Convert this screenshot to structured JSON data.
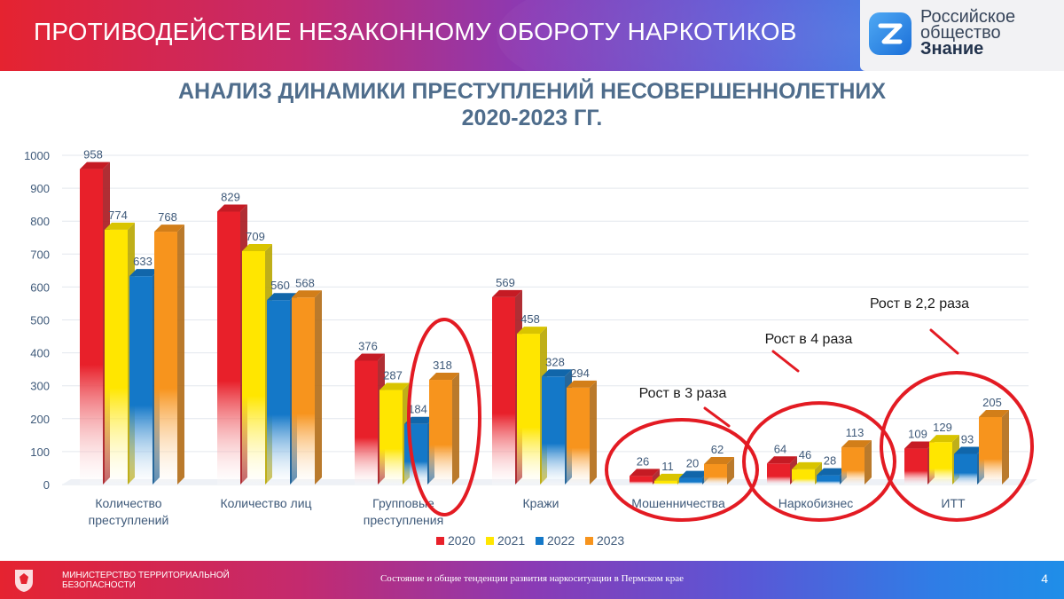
{
  "header": {
    "title": "ПРОТИВОДЕЙСТВИЕ НЕЗАКОННОМУ ОБОРОТУ НАРКОТИКОВ",
    "logo_line1": "Российское",
    "logo_line2": "общество",
    "logo_line3": "Знание"
  },
  "chart_title_line1": "АНАЛИЗ ДИНАМИКИ ПРЕСТУПЛЕНИЙ  НЕСОВЕРШЕННОЛЕТНИХ",
  "chart_title_line2": "2020-2023 ГГ.",
  "chart_data": {
    "type": "bar",
    "title": "АНАЛИЗ ДИНАМИКИ ПРЕСТУПЛЕНИЙ  НЕСОВЕРШЕННОЛЕТНИХ 2020-2023 ГГ.",
    "categories": [
      "Количество преступлений",
      "Количество лиц",
      "Групповые преступления",
      "Кражи",
      "Мошенничества",
      "Наркобизнес",
      "ИТТ"
    ],
    "category_lines": [
      [
        "Количество",
        "преступлений"
      ],
      [
        "Количество лиц"
      ],
      [
        "Групповые",
        "преступления"
      ],
      [
        "Кражи"
      ],
      [
        "Мошенничества"
      ],
      [
        "Наркобизнес"
      ],
      [
        "ИТТ"
      ]
    ],
    "series": [
      {
        "name": "2020",
        "values": [
          958,
          829,
          376,
          569,
          26,
          64,
          109
        ],
        "color": "#e8202a"
      },
      {
        "name": "2021",
        "values": [
          774,
          709,
          287,
          458,
          11,
          46,
          129
        ],
        "color": "#ffe600"
      },
      {
        "name": "2022",
        "values": [
          633,
          560,
          184,
          328,
          20,
          28,
          93
        ],
        "color": "#1478c8"
      },
      {
        "name": "2023",
        "values": [
          768,
          568,
          318,
          294,
          62,
          113,
          205
        ],
        "color": "#f7941d"
      }
    ],
    "ylim": [
      0,
      1000
    ],
    "yticks": [
      0,
      100,
      200,
      300,
      400,
      500,
      600,
      700,
      800,
      900,
      1000
    ],
    "grid": true,
    "legend": "bottom",
    "annotations": [
      {
        "text": "Рост в 3 раза",
        "category_index": 4
      },
      {
        "text": "Рост в 4 раза",
        "category_index": 5
      },
      {
        "text": "Рост в 2,2 раза",
        "category_index": 6
      }
    ],
    "highlights": [
      {
        "category_index": 2,
        "series_index": 3
      },
      {
        "category_index": 4,
        "series_index": -1
      },
      {
        "category_index": 5,
        "series_index": -1
      },
      {
        "category_index": 6,
        "series_index": -1
      }
    ],
    "highlight_color": "#e31b23"
  },
  "footer": {
    "org_line1": "МИНИСТЕРСТВО ТЕРРИТОРИАЛЬНОЙ",
    "org_line2": "БЕЗОПАСНОСТИ",
    "center_text": "Состояние и общие тенденции развития наркоситуации в Пермском крае",
    "page_number": "4"
  }
}
